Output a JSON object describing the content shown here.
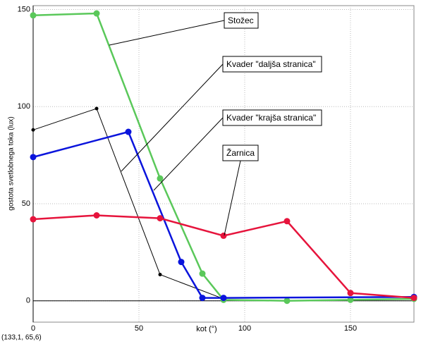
{
  "chart_data": {
    "type": "line",
    "x_label": "kot (°)",
    "y_label": "gostota svetlobnega toka (lux)",
    "cursor_readout": "(133,1, 65,6)",
    "xlim": [
      0,
      180
    ],
    "ylim": [
      -11,
      152
    ],
    "xticks": [
      0,
      50,
      100,
      150
    ],
    "yticks": [
      0,
      50,
      100,
      150
    ],
    "grid": true,
    "series": [
      {
        "name": "Stožec",
        "color": "#5ac85a",
        "x": [
          0,
          30,
          60,
          80,
          90,
          120,
          150,
          180
        ],
        "values": [
          147,
          148,
          63,
          14,
          0.5,
          0,
          0.5,
          1
        ]
      },
      {
        "name": "Kvader \"daljša stranica\"",
        "color": "#000000",
        "x": [
          0,
          30,
          60,
          90
        ],
        "values": [
          88,
          99,
          13.5,
          1
        ]
      },
      {
        "name": "Kvader \"krajša stranica\"",
        "color": "#0a14dc",
        "x": [
          0,
          45,
          70,
          80,
          90,
          180
        ],
        "values": [
          74,
          87,
          20,
          1.5,
          1.5,
          2
        ]
      },
      {
        "name": "Žarnica",
        "color": "#e6143c",
        "x": [
          0,
          30,
          60,
          90,
          120,
          150,
          180
        ],
        "values": [
          42,
          44,
          42.5,
          33.5,
          41,
          4,
          1.5
        ]
      }
    ]
  }
}
